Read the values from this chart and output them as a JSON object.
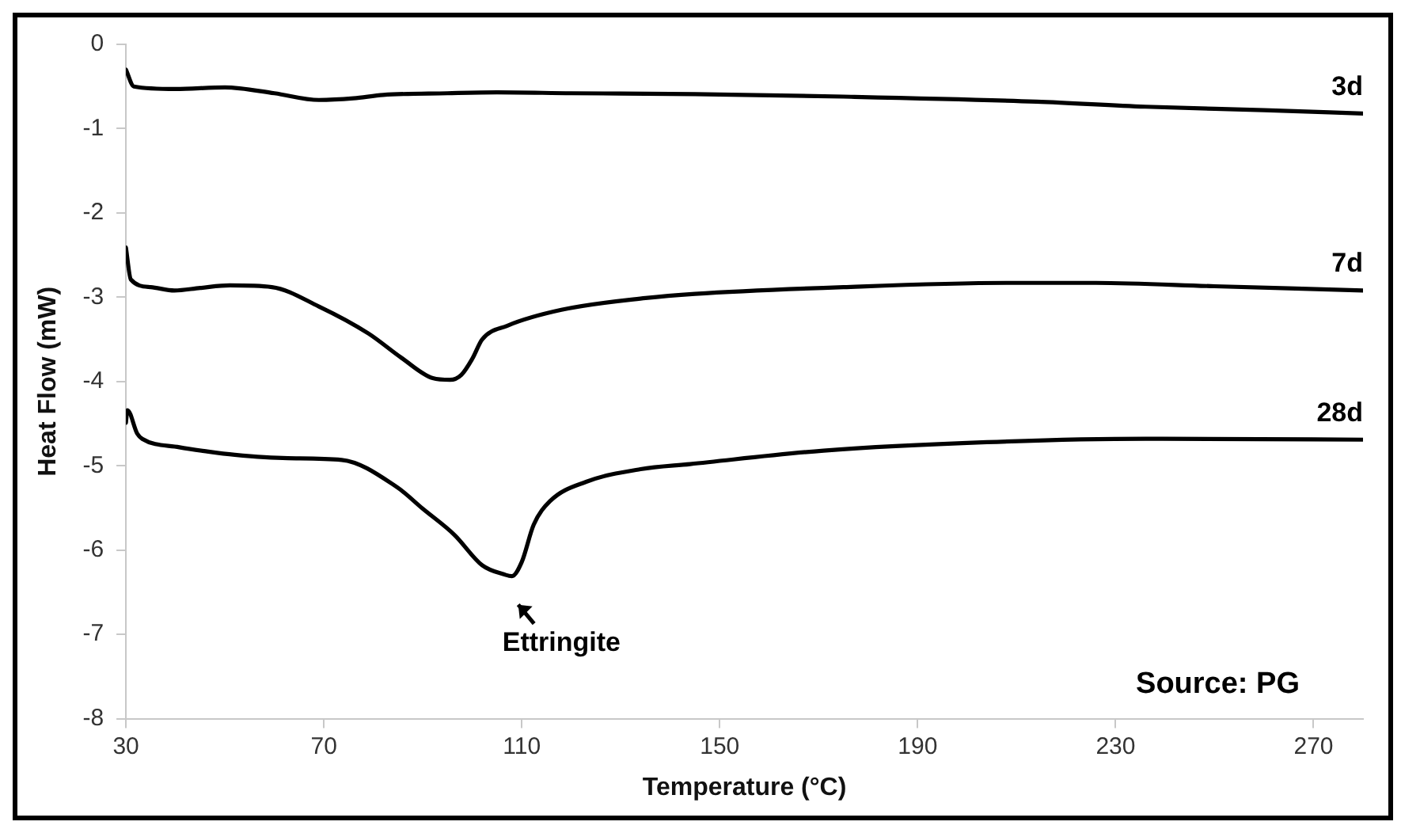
{
  "chart_data": {
    "type": "line",
    "xlabel": "Temperature (°C)",
    "ylabel": "Heat Flow (mW)",
    "xlim": [
      30,
      280
    ],
    "xticks": [
      30,
      70,
      110,
      150,
      190,
      230,
      270
    ],
    "ylim": [
      -8,
      0
    ],
    "yticks": [
      -8,
      -7,
      -6,
      -5,
      -4,
      -3,
      -2,
      -1,
      0
    ],
    "grid": false,
    "legend": false,
    "marker": "none",
    "line_style": "solid",
    "series": [
      {
        "name": "3d",
        "color": "#000000",
        "x": [
          30,
          31.6,
          40,
          50,
          60,
          69,
          76,
          82,
          95,
          105,
          120,
          145,
          175,
          214,
          236,
          260,
          280
        ],
        "values": [
          -0.3,
          -0.5,
          -0.53,
          -0.51,
          -0.58,
          -0.66,
          -0.64,
          -0.6,
          -0.58,
          -0.57,
          -0.58,
          -0.59,
          -0.62,
          -0.68,
          -0.74,
          -0.78,
          -0.82
        ]
      },
      {
        "name": "7d",
        "color": "#000000",
        "x": [
          30,
          31,
          35,
          39.8,
          45,
          51,
          59.5,
          69,
          79,
          85.7,
          92,
          95.5,
          97.8,
          100,
          102,
          107,
          118,
          135,
          145,
          175,
          209,
          226,
          250,
          280
        ],
        "values": [
          -2.41,
          -2.79,
          -2.88,
          -2.92,
          -2.89,
          -2.86,
          -2.88,
          -3.11,
          -3.43,
          -3.72,
          -3.96,
          -3.98,
          -3.92,
          -3.73,
          -3.5,
          -3.34,
          -3.15,
          -3.01,
          -2.96,
          -2.88,
          -2.83,
          -2.83,
          -2.87,
          -2.92
        ]
      },
      {
        "name": "28d",
        "color": "#000000",
        "x": [
          30,
          30.3,
          32.3,
          33.3,
          40.8,
          46.4,
          52,
          62.7,
          73.6,
          84.7,
          90,
          96.4,
          102,
          106.5,
          108,
          110,
          112.4,
          115.7,
          123,
          134,
          144,
          171,
          204,
          236,
          280
        ],
        "values": [
          -4.49,
          -4.34,
          -4.62,
          -4.68,
          -4.78,
          -4.83,
          -4.87,
          -4.91,
          -4.93,
          -5.25,
          -5.51,
          -5.82,
          -6.18,
          -6.29,
          -6.31,
          -6.14,
          -5.7,
          -5.42,
          -5.19,
          -5.04,
          -4.98,
          -4.82,
          -4.72,
          -4.68,
          -4.69
        ]
      }
    ],
    "annotations": [
      {
        "text": "Ettringite",
        "x": 108,
        "y": -6.31
      },
      "Source: PG"
    ]
  }
}
